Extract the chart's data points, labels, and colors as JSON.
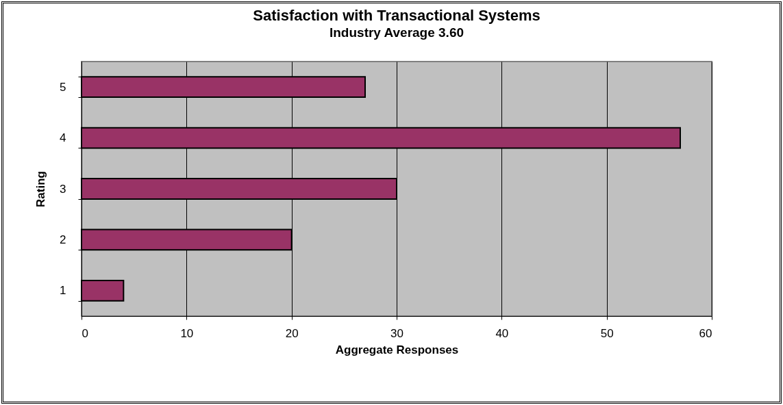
{
  "chart_data": {
    "type": "bar",
    "orientation": "horizontal",
    "title": "Satisfaction with Transactional Systems",
    "subtitle": "Industry Average 3.60",
    "xlabel": "Aggregate Responses",
    "ylabel": "Rating",
    "categories": [
      "5",
      "4",
      "3",
      "2",
      "1"
    ],
    "series": [
      {
        "color": "#993366",
        "values": [
          27,
          57,
          30,
          20,
          4
        ]
      }
    ],
    "xlim": [
      0,
      60
    ],
    "xticks": [
      0,
      10,
      20,
      30,
      40,
      50,
      60
    ],
    "grid": "x",
    "legend": false
  }
}
